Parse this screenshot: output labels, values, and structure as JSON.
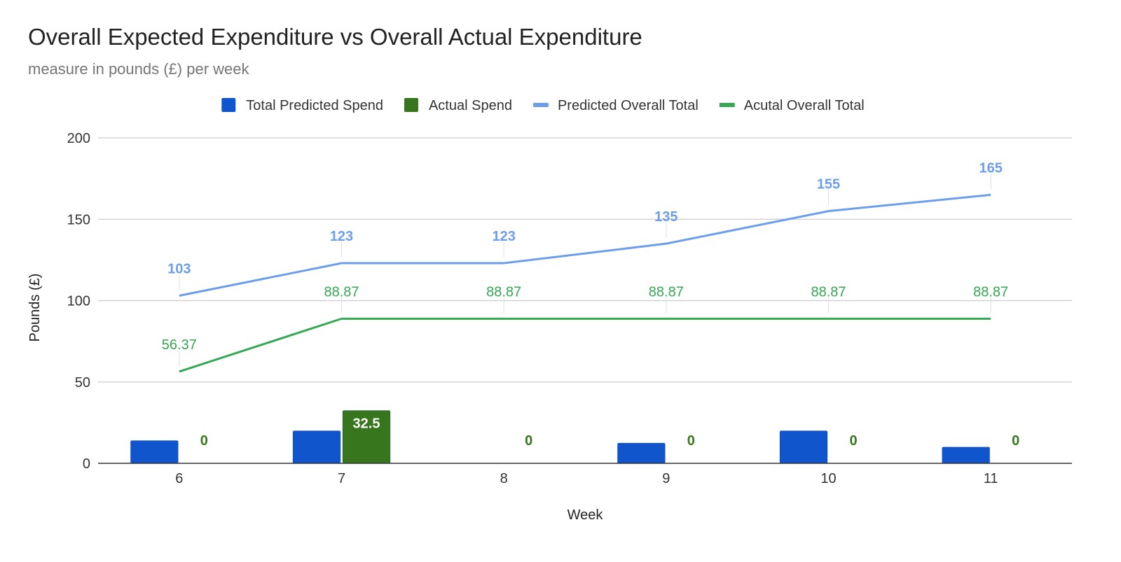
{
  "chart_data": {
    "type": "bar",
    "title": "Overall Expected Expenditure vs Overall Actual Expenditure",
    "subtitle": "measure in pounds (£) per week",
    "xlabel": "Week",
    "ylabel": "Pounds (£)",
    "categories": [
      "6",
      "7",
      "8",
      "9",
      "10",
      "11"
    ],
    "ylim": [
      0,
      200
    ],
    "yticks": [
      0,
      50,
      100,
      150,
      200
    ],
    "grid": true,
    "legend_position": "top",
    "series": [
      {
        "name": "Total Predicted Spend",
        "kind": "bar",
        "color": "#1155cc",
        "values": [
          14,
          20,
          0,
          12.5,
          20,
          10
        ],
        "show_labels": false
      },
      {
        "name": "Actual Spend",
        "kind": "bar",
        "color": "#38761d",
        "values": [
          0,
          32.5,
          0,
          0,
          0,
          0
        ],
        "show_labels": true,
        "label_color": "#38761d"
      },
      {
        "name": "Predicted Overall Total",
        "kind": "line",
        "color": "#6d9eeb",
        "values": [
          103,
          123,
          123,
          135,
          155,
          165
        ],
        "show_labels": true,
        "label_color": "#6d9eeb"
      },
      {
        "name": "Acutal Overall Total",
        "kind": "line",
        "color": "#34a853",
        "values": [
          56.37,
          88.87,
          88.87,
          88.87,
          88.87,
          88.87
        ],
        "show_labels": true,
        "label_color": "#34a853"
      }
    ]
  }
}
